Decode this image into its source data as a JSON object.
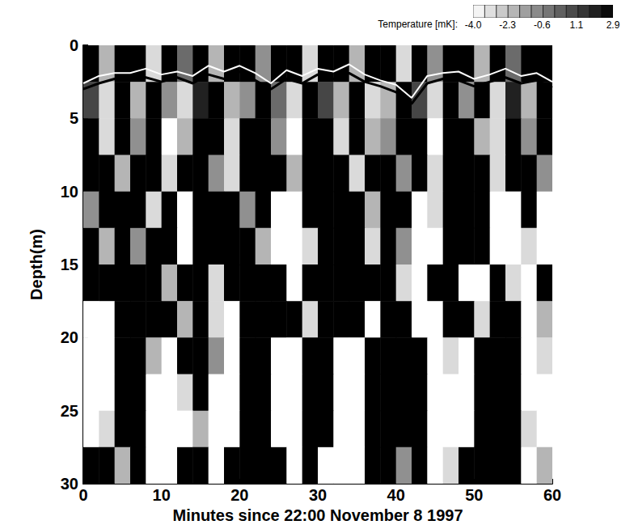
{
  "chart_data": {
    "type": "heatmap",
    "xlabel": "Minutes since 22:00 November 8 1997",
    "ylabel": "Depth(m)",
    "xlim": [
      0,
      60
    ],
    "xticks": [
      0,
      10,
      20,
      30,
      40,
      50,
      60
    ],
    "ylim": [
      0,
      30
    ],
    "yticks": [
      0,
      5,
      10,
      15,
      20,
      25,
      30
    ],
    "grid": false,
    "x_bins": [
      0,
      2,
      4,
      6,
      8,
      10,
      12,
      14,
      16,
      18,
      20,
      22,
      24,
      26,
      28,
      30,
      32,
      34,
      36,
      38,
      40,
      42,
      44,
      46,
      48,
      50,
      52,
      54,
      56,
      58,
      60
    ],
    "y_bins": [
      0,
      2.5,
      5,
      7.5,
      10,
      12.5,
      15,
      17.5,
      20,
      22.5,
      25,
      27.5,
      30
    ],
    "cells": [
      [
        2.9,
        -2,
        2.9,
        2.9,
        -3,
        2.9,
        0,
        2.9,
        -2,
        2.9,
        2.9,
        -1,
        2.9,
        2.9,
        -3,
        2.9,
        2.9,
        -2,
        2.9,
        2.9,
        -3,
        2.9,
        -1,
        2.9,
        2.9,
        -2,
        2.9,
        0,
        2.9,
        2.9
      ],
      [
        1,
        -3,
        2.9,
        -2,
        2.9,
        -1,
        -3,
        2,
        2.9,
        -2,
        -1,
        2.9,
        0,
        -3,
        2.9,
        1,
        -2,
        2.9,
        -3,
        -2,
        2.9,
        1,
        -3,
        2.9,
        -1,
        2.9,
        -3,
        2,
        -2,
        2.9
      ],
      [
        2.9,
        -3,
        2.9,
        -1,
        2.9,
        -4,
        -2,
        2.9,
        2.9,
        -3,
        2.9,
        2.9,
        -1,
        -4,
        2.9,
        2.9,
        -3,
        2.9,
        -2,
        -1,
        2.9,
        2.9,
        -4,
        2.9,
        2.9,
        -2,
        -3,
        2.9,
        -1,
        2.9
      ],
      [
        2.9,
        2.9,
        -2,
        2.9,
        2.9,
        -3,
        2.9,
        2.9,
        -1,
        -3,
        2.9,
        2.9,
        2.9,
        -2,
        2.9,
        2.9,
        2.9,
        -3,
        2.9,
        2.9,
        -1,
        2.9,
        -3,
        2.9,
        2.9,
        2.9,
        -3,
        2.9,
        2.9,
        -1
      ],
      [
        -1,
        2.9,
        2.9,
        2.9,
        -3,
        2.9,
        -4,
        2.9,
        2.9,
        2.9,
        -1,
        2.9,
        -4,
        -4,
        2.9,
        2.9,
        2.9,
        2.9,
        -2,
        2.9,
        2.9,
        -4,
        -3,
        2.9,
        2.9,
        2.9,
        -4,
        -4,
        2.9,
        -4
      ],
      [
        2.9,
        -2,
        2.9,
        -1,
        2.9,
        2.9,
        -4,
        2.9,
        2.9,
        2.9,
        2.9,
        -2,
        -4,
        -4,
        -3,
        2.9,
        2.9,
        2.9,
        -3,
        2.9,
        -1,
        -4,
        -4,
        2.9,
        2.9,
        2.9,
        -4,
        -4,
        -3,
        -4
      ],
      [
        2.9,
        2.9,
        2.9,
        2.9,
        2.9,
        -2,
        2.9,
        2.9,
        -3,
        2.9,
        2.9,
        2.9,
        2.9,
        -4,
        2.9,
        2.9,
        2.9,
        2.9,
        2.9,
        2.9,
        -3,
        -4,
        2.9,
        2.9,
        -4,
        -4,
        2.9,
        -3,
        -4,
        2.9
      ],
      [
        -4,
        -4,
        2.9,
        2.9,
        2.9,
        2.9,
        -2,
        2.9,
        -3,
        -4,
        2.9,
        2.9,
        2.9,
        2.9,
        -3,
        2.9,
        2.9,
        2.9,
        -4,
        2.9,
        2.9,
        -4,
        -4,
        2.9,
        2.9,
        -3,
        2.9,
        2.9,
        -4,
        -2
      ],
      [
        -4,
        -4,
        2.9,
        2.9,
        -2,
        -4,
        2.9,
        2.9,
        -1,
        -4,
        2.9,
        2.9,
        -4,
        -4,
        2.9,
        2.9,
        -4,
        -4,
        2.9,
        2.9,
        2.9,
        2.9,
        -4,
        -3,
        -4,
        2.9,
        2.9,
        2.9,
        -4,
        -3
      ],
      [
        -4,
        -4,
        2.9,
        2.9,
        -4,
        -4,
        -3,
        2.9,
        -4,
        -4,
        2.9,
        2.9,
        -4,
        -4,
        2.9,
        2.9,
        -4,
        -4,
        2.9,
        2.9,
        2.9,
        2.9,
        -4,
        -4,
        -4,
        2.9,
        2.9,
        2.9,
        -4,
        -4
      ],
      [
        -4,
        -3,
        2.9,
        2.9,
        -4,
        -4,
        -4,
        -2,
        -4,
        -4,
        2.9,
        2.9,
        -4,
        -4,
        2.9,
        2.9,
        -4,
        -4,
        2.9,
        2.9,
        2.9,
        2.9,
        -4,
        -4,
        -4,
        2.9,
        2.9,
        2.9,
        -3,
        -4
      ],
      [
        2.9,
        2.9,
        -2,
        2.9,
        -4,
        -4,
        2.9,
        2.9,
        -4,
        2.9,
        2.9,
        2.9,
        2.9,
        -4,
        2.9,
        -4,
        -4,
        -4,
        2.9,
        2.9,
        -1,
        2.9,
        -4,
        -3,
        2.9,
        2.9,
        2.9,
        2.9,
        -4,
        -2
      ]
    ],
    "colorbar": {
      "label": "Temperature [mK]:",
      "range": [
        -4,
        2.9
      ],
      "ticks": [
        {
          "value": -4,
          "label": "-4.0"
        },
        -2.3,
        -0.6,
        1.1,
        2.9
      ]
    },
    "series": [
      {
        "type": "line",
        "color": "#000000",
        "x": [
          0,
          2,
          4,
          6,
          8,
          10,
          12,
          14,
          16,
          18,
          20,
          22,
          24,
          26,
          28,
          30,
          32,
          34,
          36,
          38,
          40,
          42,
          44,
          46,
          48,
          50,
          52,
          54,
          56,
          58,
          60
        ],
        "values": [
          3.0,
          2.6,
          2.3,
          2.4,
          2.2,
          2.5,
          2.2,
          2.6,
          2.0,
          2.3,
          1.8,
          2.4,
          3.0,
          2.3,
          2.6,
          2.0,
          2.3,
          1.9,
          2.5,
          2.8,
          3.2,
          4.0,
          2.6,
          2.3,
          2.4,
          2.8,
          2.5,
          2.2,
          2.6,
          2.4,
          2.9
        ]
      },
      {
        "type": "line",
        "color": "#ffffff",
        "x": [
          0,
          2,
          4,
          6,
          8,
          10,
          12,
          14,
          16,
          18,
          20,
          22,
          24,
          26,
          28,
          30,
          32,
          34,
          36,
          38,
          40,
          42,
          44,
          46,
          48,
          50,
          52,
          54,
          56,
          58,
          60
        ],
        "values": [
          2.6,
          2.1,
          1.9,
          1.9,
          1.6,
          2.0,
          1.8,
          2.1,
          1.4,
          1.8,
          1.4,
          1.9,
          2.6,
          1.7,
          2.1,
          1.6,
          1.8,
          1.3,
          2.0,
          2.4,
          2.7,
          3.6,
          2.1,
          1.9,
          1.8,
          2.3,
          2.0,
          1.6,
          2.1,
          1.9,
          2.5
        ]
      }
    ]
  }
}
